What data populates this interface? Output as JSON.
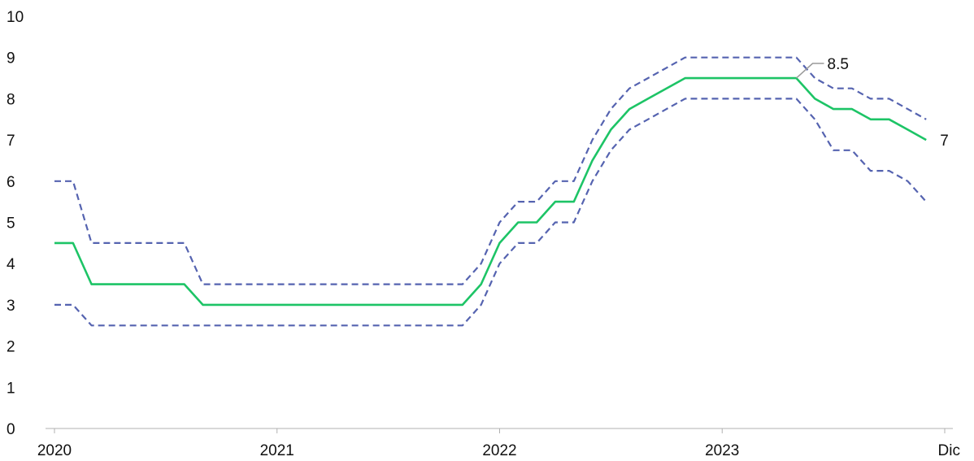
{
  "chart_data": {
    "type": "line",
    "title": "",
    "xlabel": "",
    "ylabel": "",
    "ylim": [
      0,
      10
    ],
    "yticks": [
      "0",
      "1",
      "2",
      "3",
      "4",
      "5",
      "6",
      "7",
      "8",
      "9",
      "10"
    ],
    "xlim": [
      0,
      48
    ],
    "xticks": [
      {
        "x": 0,
        "label": "2020"
      },
      {
        "x": 12,
        "label": "2021"
      },
      {
        "x": 24,
        "label": "2022"
      },
      {
        "x": 36,
        "label": "2023"
      },
      {
        "x": 48,
        "label": "Dic"
      }
    ],
    "grid": false,
    "legend": "none",
    "series": [
      {
        "style": "solid",
        "color": "#1dc466",
        "points": [
          [
            0,
            4.5
          ],
          [
            1,
            4.5
          ],
          [
            2,
            3.5
          ],
          [
            3,
            3.5
          ],
          [
            4,
            3.5
          ],
          [
            5,
            3.5
          ],
          [
            6,
            3.5
          ],
          [
            7,
            3.5
          ],
          [
            8,
            3
          ],
          [
            9,
            3
          ],
          [
            10,
            3
          ],
          [
            11,
            3
          ],
          [
            12,
            3
          ],
          [
            13,
            3
          ],
          [
            14,
            3
          ],
          [
            15,
            3
          ],
          [
            16,
            3
          ],
          [
            17,
            3
          ],
          [
            18,
            3
          ],
          [
            19,
            3
          ],
          [
            20,
            3
          ],
          [
            21,
            3
          ],
          [
            22,
            3
          ],
          [
            23,
            3.5
          ],
          [
            24,
            4.5
          ],
          [
            25,
            5
          ],
          [
            26,
            5
          ],
          [
            27,
            5.5
          ],
          [
            28,
            5.5
          ],
          [
            29,
            6.5
          ],
          [
            30,
            7.25
          ],
          [
            31,
            7.75
          ],
          [
            32,
            8
          ],
          [
            33,
            8.25
          ],
          [
            34,
            8.5
          ],
          [
            35,
            8.5
          ],
          [
            36,
            8.5
          ],
          [
            37,
            8.5
          ],
          [
            38,
            8.5
          ],
          [
            39,
            8.5
          ],
          [
            40,
            8.5
          ],
          [
            41,
            8
          ],
          [
            42,
            7.75
          ],
          [
            43,
            7.75
          ],
          [
            44,
            7.5
          ],
          [
            45,
            7.5
          ],
          [
            46,
            7.25
          ],
          [
            47,
            7
          ]
        ]
      },
      {
        "style": "dashed",
        "color": "#5563b0",
        "points": [
          [
            0,
            6
          ],
          [
            1,
            6
          ],
          [
            2,
            4.5
          ],
          [
            3,
            4.5
          ],
          [
            4,
            4.5
          ],
          [
            5,
            4.5
          ],
          [
            6,
            4.5
          ],
          [
            7,
            4.5
          ],
          [
            8,
            3.5
          ],
          [
            9,
            3.5
          ],
          [
            10,
            3.5
          ],
          [
            11,
            3.5
          ],
          [
            12,
            3.5
          ],
          [
            13,
            3.5
          ],
          [
            14,
            3.5
          ],
          [
            15,
            3.5
          ],
          [
            16,
            3.5
          ],
          [
            17,
            3.5
          ],
          [
            18,
            3.5
          ],
          [
            19,
            3.5
          ],
          [
            20,
            3.5
          ],
          [
            21,
            3.5
          ],
          [
            22,
            3.5
          ],
          [
            23,
            4
          ],
          [
            24,
            5
          ],
          [
            25,
            5.5
          ],
          [
            26,
            5.5
          ],
          [
            27,
            6
          ],
          [
            28,
            6
          ],
          [
            29,
            7
          ],
          [
            30,
            7.75
          ],
          [
            31,
            8.25
          ],
          [
            32,
            8.5
          ],
          [
            33,
            8.75
          ],
          [
            34,
            9
          ],
          [
            35,
            9
          ],
          [
            36,
            9
          ],
          [
            37,
            9
          ],
          [
            38,
            9
          ],
          [
            39,
            9
          ],
          [
            40,
            9
          ],
          [
            41,
            8.5
          ],
          [
            42,
            8.25
          ],
          [
            43,
            8.25
          ],
          [
            44,
            8
          ],
          [
            45,
            8
          ],
          [
            46,
            7.75
          ],
          [
            47,
            7.5
          ]
        ]
      },
      {
        "style": "dashed",
        "color": "#5563b0",
        "points": [
          [
            0,
            3
          ],
          [
            1,
            3
          ],
          [
            2,
            2.5
          ],
          [
            3,
            2.5
          ],
          [
            4,
            2.5
          ],
          [
            5,
            2.5
          ],
          [
            6,
            2.5
          ],
          [
            7,
            2.5
          ],
          [
            8,
            2.5
          ],
          [
            9,
            2.5
          ],
          [
            10,
            2.5
          ],
          [
            11,
            2.5
          ],
          [
            12,
            2.5
          ],
          [
            13,
            2.5
          ],
          [
            14,
            2.5
          ],
          [
            15,
            2.5
          ],
          [
            16,
            2.5
          ],
          [
            17,
            2.5
          ],
          [
            18,
            2.5
          ],
          [
            19,
            2.5
          ],
          [
            20,
            2.5
          ],
          [
            21,
            2.5
          ],
          [
            22,
            2.5
          ],
          [
            23,
            3
          ],
          [
            24,
            4
          ],
          [
            25,
            4.5
          ],
          [
            26,
            4.5
          ],
          [
            27,
            5
          ],
          [
            28,
            5
          ],
          [
            29,
            6
          ],
          [
            30,
            6.75
          ],
          [
            31,
            7.25
          ],
          [
            32,
            7.5
          ],
          [
            33,
            7.75
          ],
          [
            34,
            8
          ],
          [
            35,
            8
          ],
          [
            36,
            8
          ],
          [
            37,
            8
          ],
          [
            38,
            8
          ],
          [
            39,
            8
          ],
          [
            40,
            8
          ],
          [
            41,
            7.5
          ],
          [
            42,
            6.75
          ],
          [
            43,
            6.75
          ],
          [
            44,
            6.25
          ],
          [
            45,
            6.25
          ],
          [
            46,
            6
          ],
          [
            47,
            5.5
          ]
        ]
      }
    ],
    "annotations": [
      {
        "text": "8.5",
        "x": 40,
        "y": 8.5,
        "leader": true
      },
      {
        "text": "7",
        "x": 47,
        "y": 7,
        "leader": false
      }
    ],
    "axis_color": "#b0b0b0"
  }
}
